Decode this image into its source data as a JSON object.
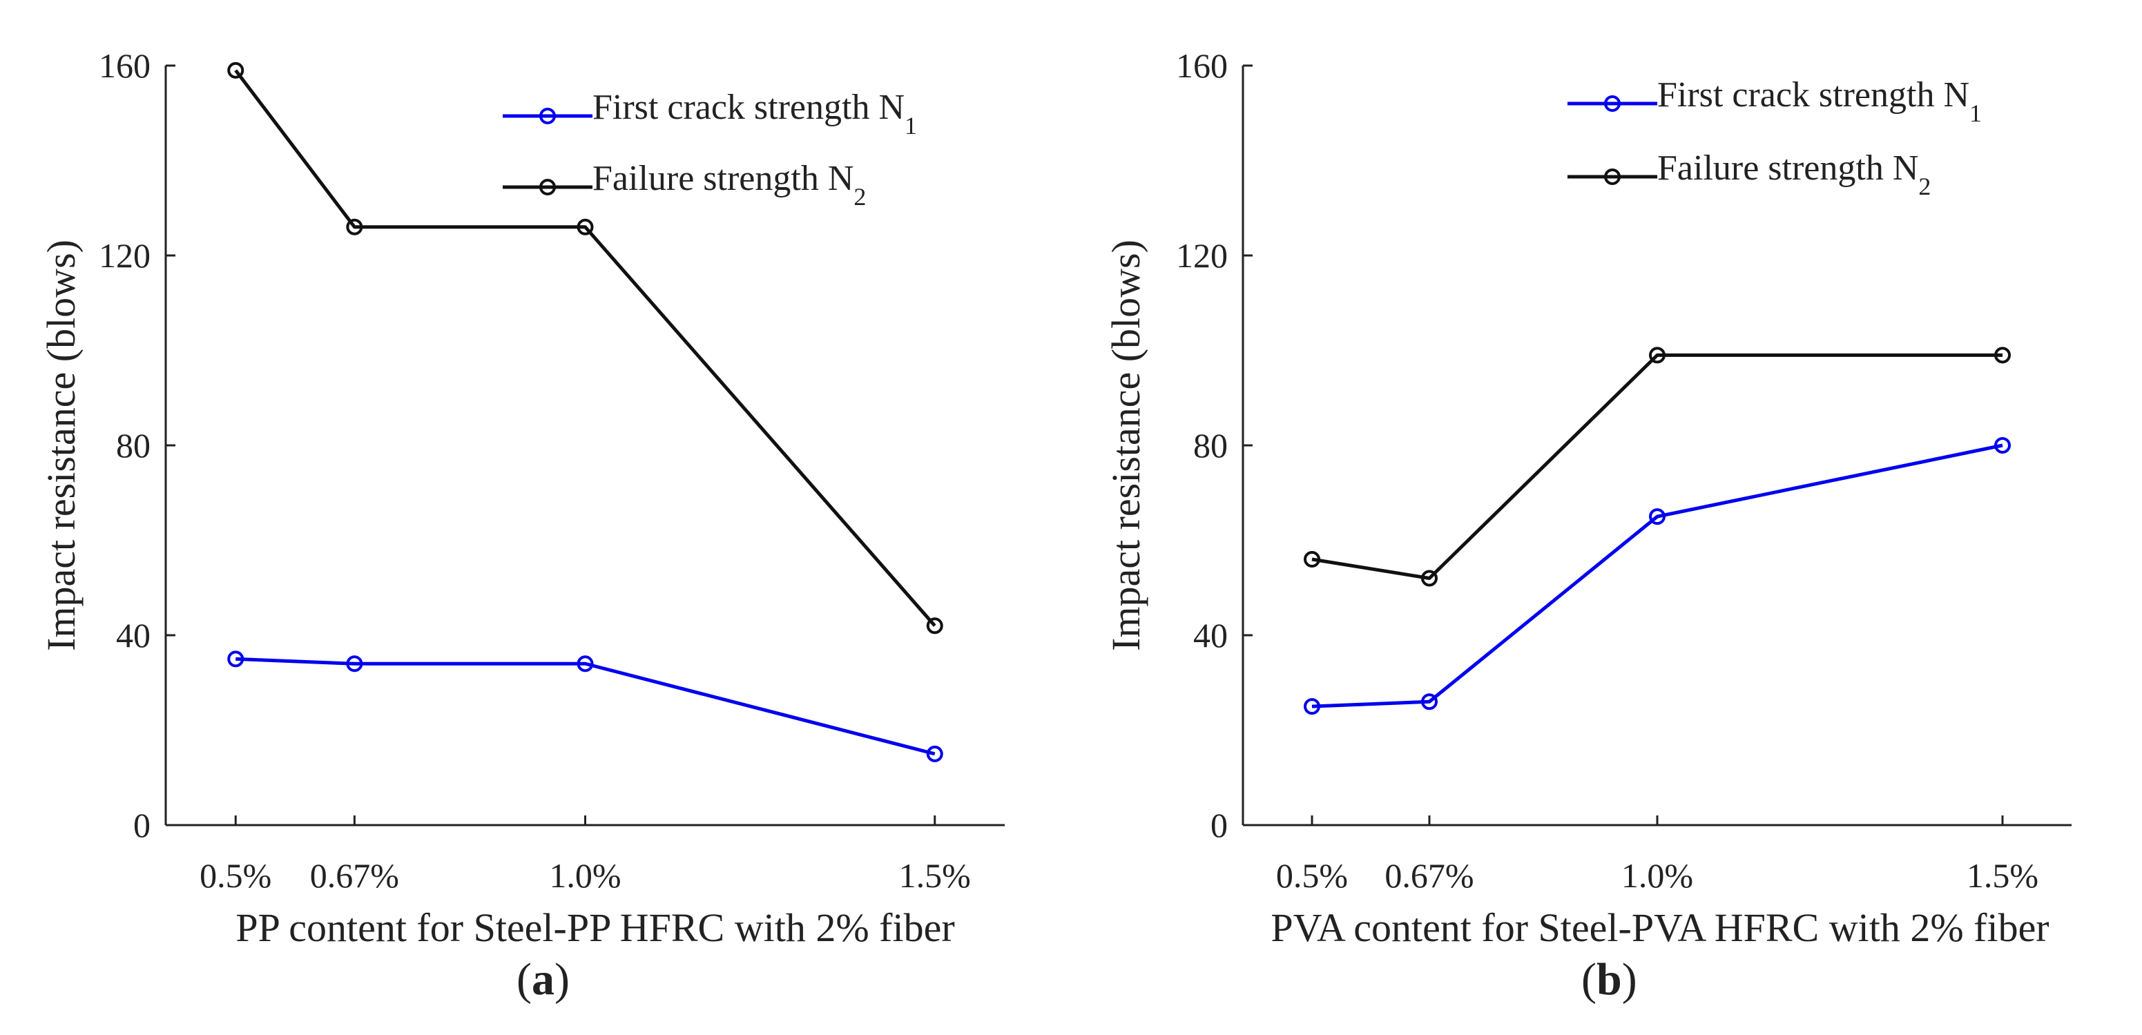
{
  "chart_data": [
    {
      "type": "line",
      "panel": "a",
      "categories": [
        "0.5%",
        "0.67%",
        "1.0%",
        "1.5%"
      ],
      "x": [
        0.5,
        0.67,
        1.0,
        1.5
      ],
      "ylim": [
        0,
        160
      ],
      "yticks": [
        0,
        40,
        80,
        120,
        160
      ],
      "ylabel": "Impact resistance (blows)",
      "xlabel": "PP content for Steel-PP HFRC with 2% fiber",
      "series": [
        {
          "name": "First crack strength N",
          "subscript": "1",
          "color": "#0000ee",
          "values": [
            35,
            34,
            34,
            15
          ]
        },
        {
          "name": "Failure strength N",
          "subscript": "2",
          "color": "#111111",
          "values": [
            159,
            126,
            126,
            42
          ]
        }
      ],
      "label_open": "(",
      "label_letter": "a",
      "label_close": ")"
    },
    {
      "type": "line",
      "panel": "b",
      "categories": [
        "0.5%",
        "0.67%",
        "1.0%",
        "1.5%"
      ],
      "x": [
        0.5,
        0.67,
        1.0,
        1.5
      ],
      "ylim": [
        0,
        160
      ],
      "yticks": [
        0,
        40,
        80,
        120,
        160
      ],
      "ylabel": "Impact resistance (blows)",
      "xlabel": "PVA content for Steel-PVA HFRC with 2% fiber",
      "series": [
        {
          "name": "First crack strength N",
          "subscript": "1",
          "color": "#0000ee",
          "values": [
            25,
            26,
            65,
            80
          ]
        },
        {
          "name": "Failure strength N",
          "subscript": "2",
          "color": "#111111",
          "values": [
            56,
            52,
            99,
            99
          ]
        }
      ],
      "label_open": "(",
      "label_letter": "b",
      "label_close": ")"
    }
  ]
}
